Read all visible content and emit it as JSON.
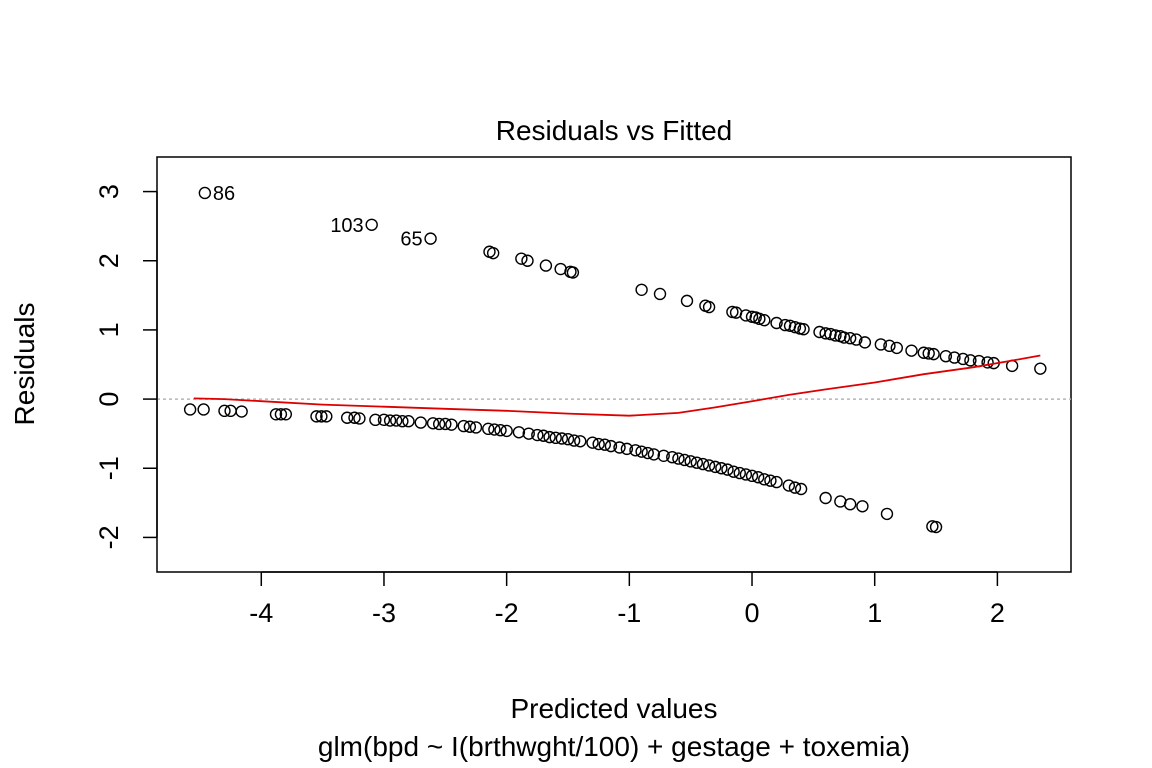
{
  "chart_data": {
    "type": "scatter",
    "title": "Residuals vs Fitted",
    "xlabel": "Predicted values",
    "subtitle": "glm(bpd ~ I(brthwght/100) + gestage + toxemia)",
    "ylabel": "Residuals",
    "xlim": [
      -4.85,
      2.6
    ],
    "ylim": [
      -2.5,
      3.5
    ],
    "x_ticks": [
      -4,
      -3,
      -2,
      -1,
      0,
      1,
      2
    ],
    "y_ticks": [
      -2,
      -1,
      0,
      1,
      2,
      3
    ],
    "grid": false,
    "zero_reference_line": true,
    "colors": {
      "points": "#000000",
      "smooth_line": "#dd0000",
      "reference_line": "#b5b5b5"
    },
    "labeled_points": [
      {
        "label": "86",
        "x": -4.46,
        "y": 2.98
      },
      {
        "label": "103",
        "x": -3.1,
        "y": 2.52
      },
      {
        "label": "65",
        "x": -2.62,
        "y": 2.32
      }
    ],
    "series": [
      {
        "points": [
          [
            -4.46,
            2.98
          ],
          [
            -3.1,
            2.52
          ],
          [
            -2.62,
            2.32
          ],
          [
            -2.14,
            2.13
          ],
          [
            -2.11,
            2.11
          ],
          [
            -1.88,
            2.03
          ],
          [
            -1.83,
            2.0
          ],
          [
            -1.68,
            1.93
          ],
          [
            -1.56,
            1.88
          ],
          [
            -1.48,
            1.84
          ],
          [
            -1.46,
            1.83
          ],
          [
            -0.9,
            1.58
          ],
          [
            -0.75,
            1.52
          ],
          [
            -0.53,
            1.42
          ],
          [
            -0.38,
            1.35
          ],
          [
            -0.35,
            1.33
          ],
          [
            -0.16,
            1.26
          ],
          [
            -0.13,
            1.25
          ],
          [
            -0.05,
            1.21
          ],
          [
            0.0,
            1.19
          ],
          [
            0.03,
            1.18
          ],
          [
            0.06,
            1.16
          ],
          [
            0.1,
            1.14
          ],
          [
            0.2,
            1.1
          ],
          [
            0.27,
            1.07
          ],
          [
            0.31,
            1.06
          ],
          [
            0.35,
            1.04
          ],
          [
            0.39,
            1.02
          ],
          [
            0.42,
            1.01
          ],
          [
            0.55,
            0.97
          ],
          [
            0.6,
            0.95
          ],
          [
            0.64,
            0.94
          ],
          [
            0.68,
            0.92
          ],
          [
            0.72,
            0.91
          ],
          [
            0.75,
            0.89
          ],
          [
            0.8,
            0.88
          ],
          [
            0.85,
            0.86
          ],
          [
            0.92,
            0.82
          ],
          [
            1.05,
            0.79
          ],
          [
            1.12,
            0.77
          ],
          [
            1.18,
            0.74
          ],
          [
            1.3,
            0.7
          ],
          [
            1.4,
            0.67
          ],
          [
            1.44,
            0.66
          ],
          [
            1.48,
            0.65
          ],
          [
            1.58,
            0.62
          ],
          [
            1.65,
            0.6
          ],
          [
            1.72,
            0.58
          ],
          [
            1.78,
            0.56
          ],
          [
            1.85,
            0.55
          ],
          [
            1.92,
            0.53
          ],
          [
            1.97,
            0.52
          ],
          [
            2.12,
            0.48
          ],
          [
            2.35,
            0.44
          ],
          [
            -4.58,
            -0.15
          ],
          [
            -4.47,
            -0.15
          ],
          [
            -4.3,
            -0.17
          ],
          [
            -4.25,
            -0.17
          ],
          [
            -4.16,
            -0.18
          ],
          [
            -3.88,
            -0.22
          ],
          [
            -3.84,
            -0.22
          ],
          [
            -3.8,
            -0.22
          ],
          [
            -3.55,
            -0.25
          ],
          [
            -3.51,
            -0.25
          ],
          [
            -3.47,
            -0.25
          ],
          [
            -3.3,
            -0.27
          ],
          [
            -3.24,
            -0.27
          ],
          [
            -3.2,
            -0.28
          ],
          [
            -3.07,
            -0.3
          ],
          [
            -3.0,
            -0.3
          ],
          [
            -2.95,
            -0.31
          ],
          [
            -2.9,
            -0.31
          ],
          [
            -2.85,
            -0.32
          ],
          [
            -2.8,
            -0.32
          ],
          [
            -2.7,
            -0.34
          ],
          [
            -2.6,
            -0.35
          ],
          [
            -2.55,
            -0.36
          ],
          [
            -2.5,
            -0.36
          ],
          [
            -2.45,
            -0.37
          ],
          [
            -2.35,
            -0.39
          ],
          [
            -2.3,
            -0.4
          ],
          [
            -2.25,
            -0.41
          ],
          [
            -2.15,
            -0.43
          ],
          [
            -2.1,
            -0.44
          ],
          [
            -2.05,
            -0.45
          ],
          [
            -2.0,
            -0.46
          ],
          [
            -1.9,
            -0.48
          ],
          [
            -1.82,
            -0.5
          ],
          [
            -1.75,
            -0.52
          ],
          [
            -1.7,
            -0.53
          ],
          [
            -1.65,
            -0.55
          ],
          [
            -1.6,
            -0.56
          ],
          [
            -1.55,
            -0.57
          ],
          [
            -1.5,
            -0.58
          ],
          [
            -1.45,
            -0.6
          ],
          [
            -1.4,
            -0.61
          ],
          [
            -1.3,
            -0.63
          ],
          [
            -1.25,
            -0.65
          ],
          [
            -1.2,
            -0.66
          ],
          [
            -1.15,
            -0.68
          ],
          [
            -1.08,
            -0.7
          ],
          [
            -1.02,
            -0.72
          ],
          [
            -0.95,
            -0.74
          ],
          [
            -0.9,
            -0.76
          ],
          [
            -0.85,
            -0.78
          ],
          [
            -0.8,
            -0.8
          ],
          [
            -0.72,
            -0.82
          ],
          [
            -0.65,
            -0.84
          ],
          [
            -0.6,
            -0.86
          ],
          [
            -0.55,
            -0.88
          ],
          [
            -0.5,
            -0.9
          ],
          [
            -0.45,
            -0.92
          ],
          [
            -0.4,
            -0.94
          ],
          [
            -0.35,
            -0.96
          ],
          [
            -0.3,
            -0.98
          ],
          [
            -0.25,
            -1.0
          ],
          [
            -0.2,
            -1.02
          ],
          [
            -0.15,
            -1.05
          ],
          [
            -0.1,
            -1.07
          ],
          [
            -0.05,
            -1.09
          ],
          [
            0.0,
            -1.11
          ],
          [
            0.05,
            -1.13
          ],
          [
            0.1,
            -1.16
          ],
          [
            0.15,
            -1.18
          ],
          [
            0.2,
            -1.2
          ],
          [
            0.3,
            -1.25
          ],
          [
            0.35,
            -1.28
          ],
          [
            0.4,
            -1.3
          ],
          [
            0.6,
            -1.43
          ],
          [
            0.72,
            -1.48
          ],
          [
            0.8,
            -1.52
          ],
          [
            0.9,
            -1.55
          ],
          [
            1.1,
            -1.66
          ],
          [
            1.47,
            -1.84
          ],
          [
            1.5,
            -1.85
          ]
        ]
      }
    ],
    "smooth_line": [
      [
        -4.55,
        0.01
      ],
      [
        -4.3,
        0.0
      ],
      [
        -4.0,
        -0.03
      ],
      [
        -3.5,
        -0.08
      ],
      [
        -3.0,
        -0.11
      ],
      [
        -2.5,
        -0.14
      ],
      [
        -2.0,
        -0.17
      ],
      [
        -1.5,
        -0.21
      ],
      [
        -1.0,
        -0.24
      ],
      [
        -0.6,
        -0.2
      ],
      [
        -0.3,
        -0.12
      ],
      [
        0.0,
        -0.03
      ],
      [
        0.3,
        0.06
      ],
      [
        0.6,
        0.14
      ],
      [
        1.0,
        0.24
      ],
      [
        1.4,
        0.36
      ],
      [
        1.8,
        0.46
      ],
      [
        2.1,
        0.55
      ],
      [
        2.35,
        0.63
      ]
    ]
  }
}
